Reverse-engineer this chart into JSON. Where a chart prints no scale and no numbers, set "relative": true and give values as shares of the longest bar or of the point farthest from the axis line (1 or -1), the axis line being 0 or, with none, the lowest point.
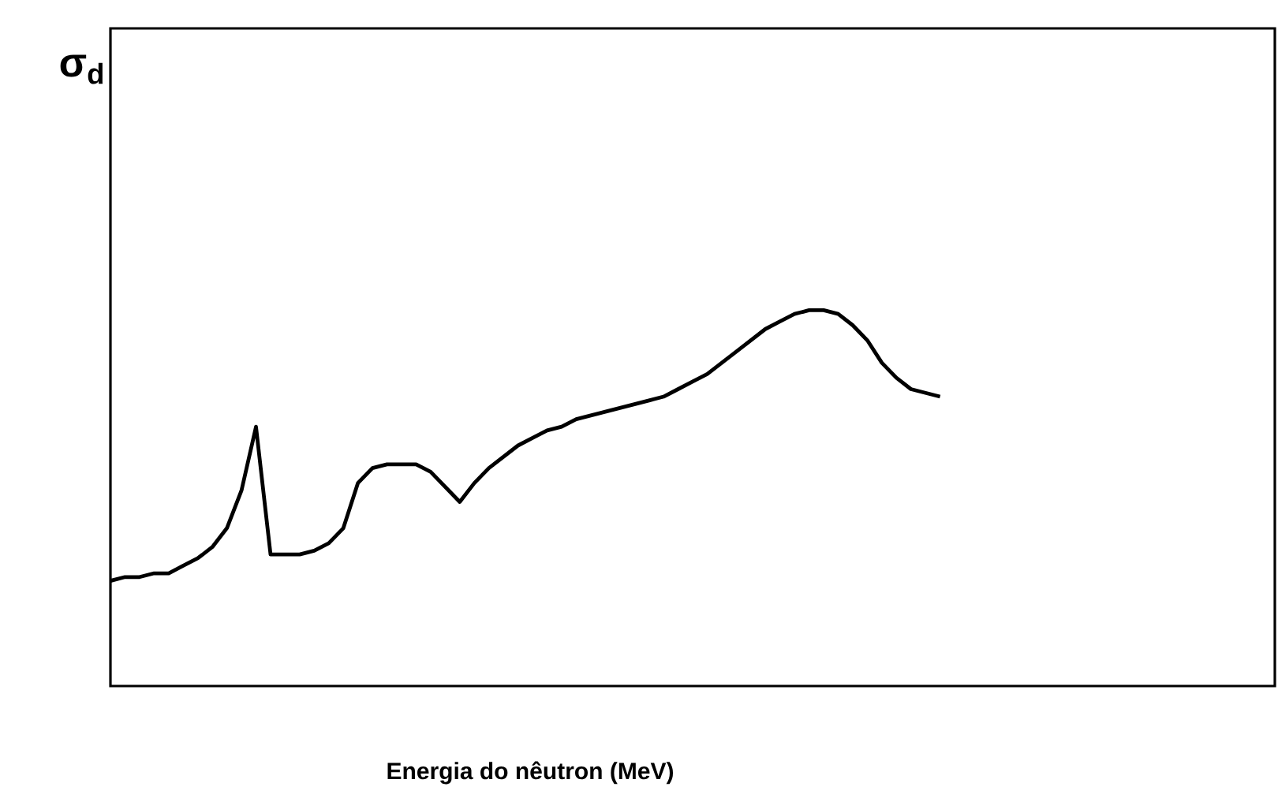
{
  "chart_data": {
    "type": "line",
    "relative": true,
    "xlabel": "Energia do nêutron (MeV)",
    "annotations": [
      "σ$_{d}$"
    ],
    "color": "#000000",
    "categories": [
      null,
      null,
      null,
      null,
      null,
      null,
      null,
      null,
      null,
      null,
      null,
      null,
      null,
      null,
      null,
      null,
      null,
      null,
      null,
      null,
      null,
      null,
      null,
      null,
      null,
      null,
      null,
      null,
      null,
      null,
      null,
      null,
      null,
      null,
      null,
      null,
      null,
      null,
      null,
      null,
      null,
      null,
      null,
      null,
      null,
      null,
      null,
      null,
      null,
      null,
      null,
      null,
      null,
      null,
      null,
      null,
      null,
      null,
      null,
      null,
      null,
      null,
      null,
      null,
      null,
      null,
      null,
      null,
      null,
      null,
      null,
      null,
      null,
      null,
      null,
      null,
      null,
      null,
      null,
      null,
      null
    ],
    "values": [
      0.28,
      0.29,
      0.29,
      0.3,
      0.3,
      0.32,
      0.34,
      0.37,
      0.42,
      0.52,
      0.69,
      0.35,
      0.35,
      0.35,
      0.36,
      0.38,
      0.42,
      0.54,
      0.58,
      0.59,
      0.59,
      0.59,
      0.57,
      0.53,
      0.49,
      0.54,
      0.58,
      0.61,
      0.64,
      0.66,
      0.68,
      0.69,
      0.71,
      0.72,
      0.73,
      0.74,
      0.75,
      0.76,
      0.77,
      0.79,
      0.81,
      0.83,
      0.86,
      0.89,
      0.92,
      0.95,
      0.97,
      0.99,
      1,
      1,
      0.99,
      0.96,
      0.92,
      0.86,
      0.82,
      0.79,
      0.78,
      0.77,
      null,
      null,
      null,
      null,
      null,
      null,
      null,
      null,
      null,
      null,
      null,
      null,
      null,
      null,
      null,
      null,
      null,
      null,
      null,
      null,
      null,
      null,
      null
    ],
    "line_style": "solid"
  }
}
